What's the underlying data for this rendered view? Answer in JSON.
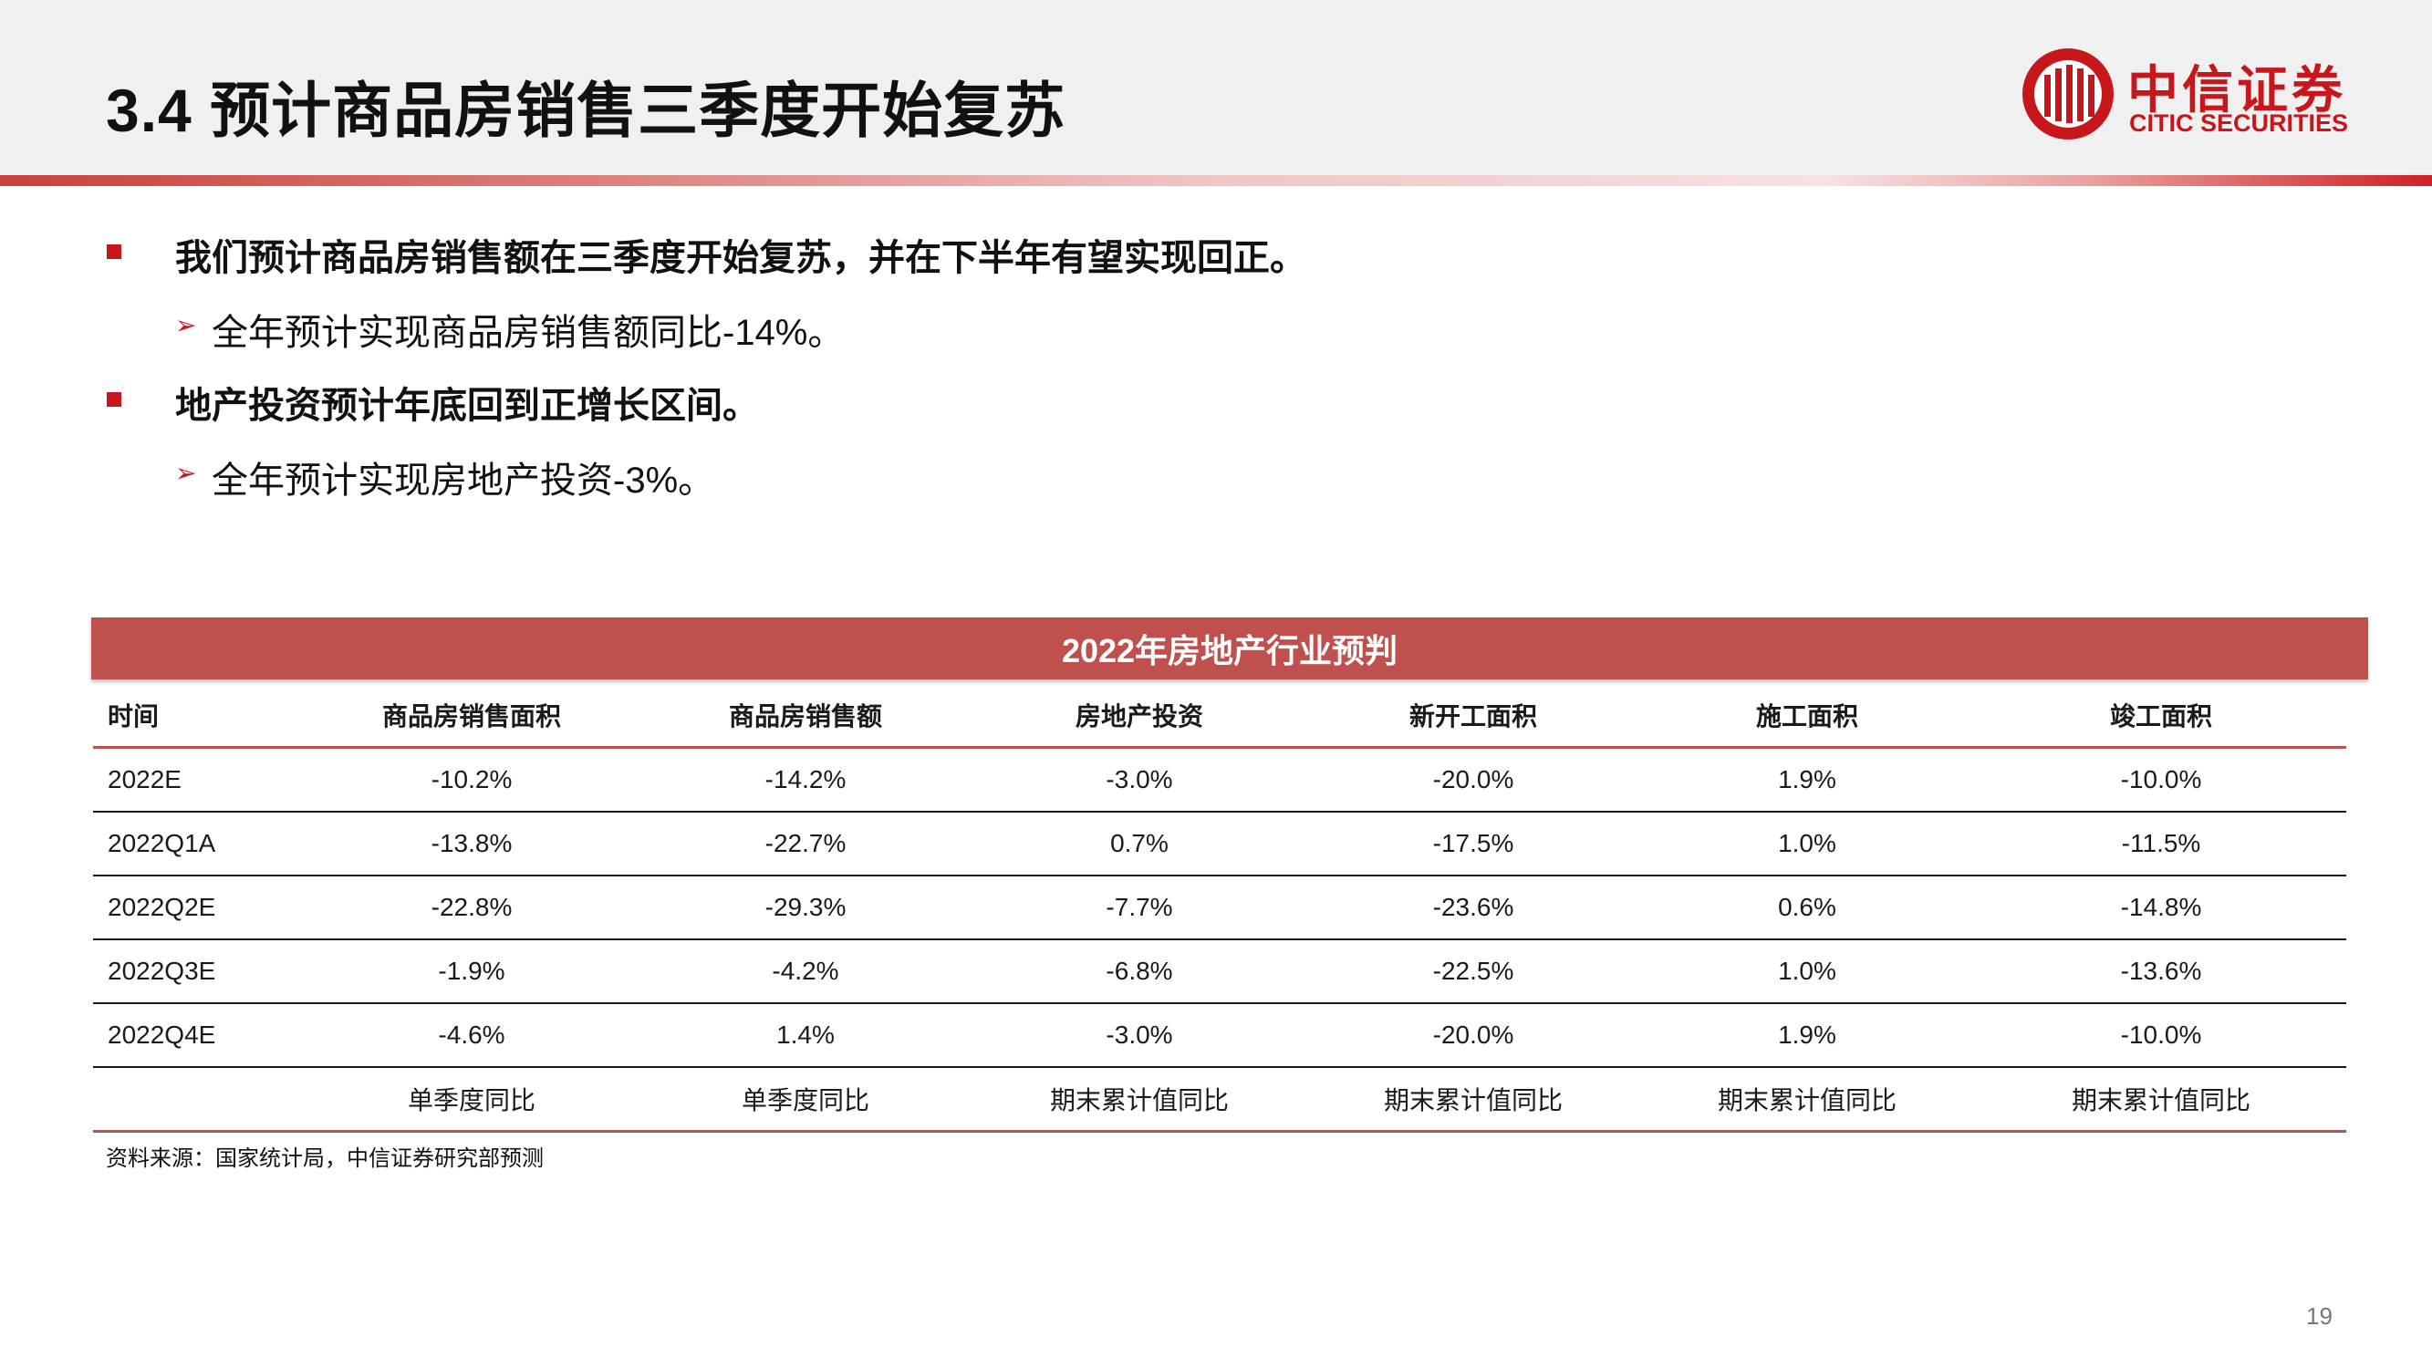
{
  "header": {
    "title": "3.4 预计商品房销售三季度开始复苏",
    "logo_cn": "中信证券",
    "logo_en": "CITIC SECURITIES",
    "brand_color": "#c8161d"
  },
  "bullets": [
    {
      "text": "我们预计商品房销售额在三季度开始复苏，并在下半年有望实现回正。",
      "sub": "全年预计实现商品房销售额同比-14%。"
    },
    {
      "text": "地产投资预计年底回到正增长区间。",
      "sub": "全年预计实现房地产投资-3%。"
    }
  ],
  "table": {
    "title": "2022年房地产行业预判",
    "accent": "#c0504d",
    "headers": [
      "时间",
      "商品房销售面积",
      "商品房销售额",
      "房地产投资",
      "新开工面积",
      "施工面积",
      "竣工面积"
    ],
    "rows": [
      [
        "2022E",
        "-10.2%",
        "-14.2%",
        "-3.0%",
        "-20.0%",
        "1.9%",
        "-10.0%"
      ],
      [
        "2022Q1A",
        "-13.8%",
        "-22.7%",
        "0.7%",
        "-17.5%",
        "1.0%",
        "-11.5%"
      ],
      [
        "2022Q2E",
        "-22.8%",
        "-29.3%",
        "-7.7%",
        "-23.6%",
        "0.6%",
        "-14.8%"
      ],
      [
        "2022Q3E",
        "-1.9%",
        "-4.2%",
        "-6.8%",
        "-22.5%",
        "1.0%",
        "-13.6%"
      ],
      [
        "2022Q4E",
        "-4.6%",
        "1.4%",
        "-3.0%",
        "-20.0%",
        "1.9%",
        "-10.0%"
      ]
    ],
    "footer_row": [
      "",
      "单季度同比",
      "单季度同比",
      "期末累计值同比",
      "期末累计值同比",
      "期末累计值同比",
      "期末累计值同比"
    ]
  },
  "source": "资料来源：国家统计局，中信证券研究部预测",
  "page_number": "19"
}
